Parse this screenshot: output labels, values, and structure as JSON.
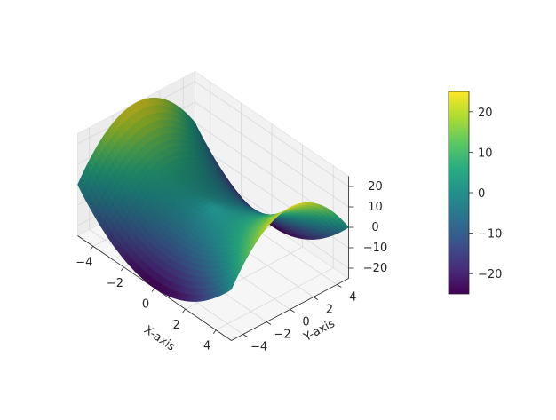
{
  "chart_data": {
    "type": "surface",
    "function": "z = x^2 - y^2",
    "x_range": [
      -5,
      5
    ],
    "y_range": [
      -5,
      5
    ],
    "zlim": [
      -25,
      25
    ],
    "xlabel": "X-axis",
    "ylabel": "Y-axis",
    "zlabel": "",
    "x_ticks": [
      -4,
      -2,
      0,
      2,
      4
    ],
    "y_ticks": [
      -4,
      -2,
      0,
      2,
      4
    ],
    "z_ticks": [
      -20,
      -10,
      0,
      10,
      20
    ],
    "colormap": "viridis",
    "colorbar": {
      "range": [
        -25,
        25
      ],
      "ticks": [
        -20,
        -10,
        0,
        10,
        20
      ],
      "placement": "right"
    },
    "grid": true,
    "colors": {
      "cmap_low": "#440154",
      "cmap_mid": "#21918c",
      "cmap_high": "#fde725",
      "pane": "#f2f2f2",
      "grid": "#d9d9d9"
    }
  }
}
